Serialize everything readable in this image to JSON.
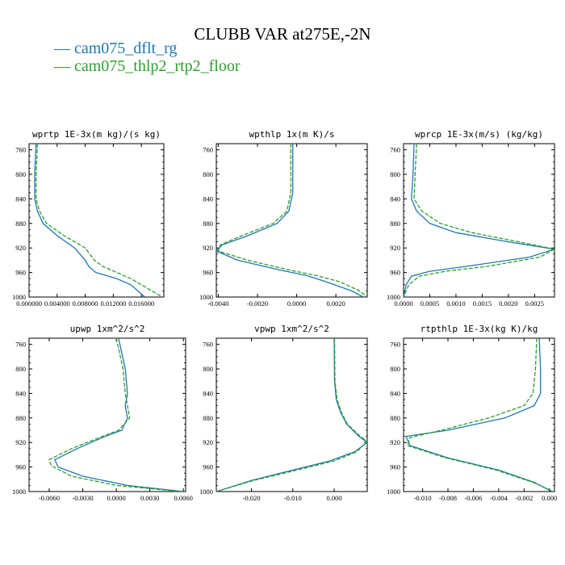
{
  "title": "CLUBB VAR at275E,-2N",
  "legend": [
    {
      "label": "cam075_dflt_rg",
      "color": "#1f77b4",
      "dash": "solid"
    },
    {
      "label": "cam075_thlp2_rtp2_floor",
      "color": "#2ca02c",
      "dash": "dashed"
    }
  ],
  "chart_data": [
    {
      "type": "line",
      "title": "wprtp  1E-3x(m kg)/(s kg)",
      "xlim": [
        0,
        0.0192
      ],
      "ylim": [
        1000,
        750
      ],
      "y_inverted": true,
      "xticks": [
        0,
        0.004,
        0.008,
        0.012,
        0.016
      ],
      "xtick_labels": [
        "0.000000",
        "0.004000",
        "0.008000",
        "0.012000",
        "0.016000"
      ],
      "yticks": [
        760,
        800,
        840,
        880,
        920,
        960,
        1000
      ],
      "series": [
        {
          "name": "cam075_dflt_rg",
          "points": [
            [
              0.001,
              750
            ],
            [
              0.0008,
              800
            ],
            [
              0.0008,
              840
            ],
            [
              0.0012,
              860
            ],
            [
              0.002,
              880
            ],
            [
              0.004,
              900
            ],
            [
              0.0065,
              920
            ],
            [
              0.008,
              940
            ],
            [
              0.0085,
              950
            ],
            [
              0.0095,
              960
            ],
            [
              0.0125,
              970
            ],
            [
              0.0145,
              980
            ],
            [
              0.0155,
              990
            ],
            [
              0.0165,
              1000
            ]
          ]
        },
        {
          "name": "cam075_thlp2_rtp2_floor",
          "points": [
            [
              0.0012,
              750
            ],
            [
              0.001,
              800
            ],
            [
              0.001,
              840
            ],
            [
              0.0015,
              860
            ],
            [
              0.0025,
              880
            ],
            [
              0.005,
              900
            ],
            [
              0.008,
              920
            ],
            [
              0.0093,
              940
            ],
            [
              0.0105,
              950
            ],
            [
              0.0125,
              960
            ],
            [
              0.0145,
              970
            ],
            [
              0.016,
              980
            ],
            [
              0.0175,
              990
            ],
            [
              0.019,
              1000
            ]
          ]
        }
      ]
    },
    {
      "type": "line",
      "title": "wpthlp  1x(m K)/s",
      "xlim": [
        -0.0041,
        0.0036
      ],
      "ylim": [
        1000,
        750
      ],
      "y_inverted": true,
      "xticks": [
        -0.004,
        -0.002,
        0.0,
        0.002
      ],
      "xtick_labels": [
        "-0.0040",
        "-0.0020",
        "0.0000",
        "0.0020"
      ],
      "yticks": [
        760,
        800,
        840,
        880,
        920,
        960,
        1000
      ],
      "series": [
        {
          "name": "cam075_dflt_rg",
          "points": [
            [
              -0.0002,
              750
            ],
            [
              -0.0002,
              800
            ],
            [
              -0.0002,
              830
            ],
            [
              -0.0004,
              860
            ],
            [
              -0.001,
              880
            ],
            [
              -0.0025,
              900
            ],
            [
              -0.0038,
              915
            ],
            [
              -0.0041,
              925
            ],
            [
              -0.003,
              940
            ],
            [
              -0.001,
              955
            ],
            [
              0.0005,
              965
            ],
            [
              0.0015,
              975
            ],
            [
              0.0028,
              990
            ],
            [
              0.0034,
              1000
            ]
          ]
        },
        {
          "name": "cam075_thlp2_rtp2_floor",
          "points": [
            [
              -0.0003,
              750
            ],
            [
              -0.0003,
              800
            ],
            [
              -0.0003,
              830
            ],
            [
              -0.0005,
              860
            ],
            [
              -0.0012,
              880
            ],
            [
              -0.0028,
              900
            ],
            [
              -0.0039,
              915
            ],
            [
              -0.004,
              925
            ],
            [
              -0.0025,
              940
            ],
            [
              -0.0005,
              955
            ],
            [
              0.001,
              965
            ],
            [
              0.0022,
              975
            ],
            [
              0.0032,
              990
            ],
            [
              0.0036,
              1000
            ]
          ]
        }
      ]
    },
    {
      "type": "line",
      "title": "wprcp  1E-3x(m/s) (kg/kg)",
      "xlim": [
        0,
        0.00288
      ],
      "ylim": [
        1000,
        750
      ],
      "y_inverted": true,
      "xticks": [
        0,
        0.0005,
        0.001,
        0.0015,
        0.002,
        0.0025
      ],
      "xtick_labels": [
        "0.0000",
        "0.0005",
        "0.0010",
        "0.0015",
        "0.0020",
        "0.0025"
      ],
      "yticks": [
        760,
        800,
        840,
        880,
        920,
        960,
        1000
      ],
      "series": [
        {
          "name": "cam075_dflt_rg",
          "points": [
            [
              0.0002,
              750
            ],
            [
              0.00018,
              800
            ],
            [
              0.00015,
              840
            ],
            [
              0.00025,
              860
            ],
            [
              0.0005,
              880
            ],
            [
              0.001,
              895
            ],
            [
              0.002,
              910
            ],
            [
              0.00288,
              922
            ],
            [
              0.0024,
              935
            ],
            [
              0.0012,
              950
            ],
            [
              0.0005,
              958
            ],
            [
              0.00015,
              966
            ],
            [
              5e-05,
              980
            ],
            [
              0.0,
              1000
            ]
          ]
        },
        {
          "name": "cam075_thlp2_rtp2_floor",
          "points": [
            [
              0.00025,
              750
            ],
            [
              0.00022,
              800
            ],
            [
              0.0002,
              840
            ],
            [
              0.00035,
              860
            ],
            [
              0.0007,
              880
            ],
            [
              0.0013,
              895
            ],
            [
              0.0022,
              910
            ],
            [
              0.00288,
              922
            ],
            [
              0.0026,
              935
            ],
            [
              0.0016,
              950
            ],
            [
              0.0008,
              958
            ],
            [
              0.0003,
              966
            ],
            [
              0.0001,
              980
            ],
            [
              0.0,
              1000
            ]
          ]
        }
      ]
    },
    {
      "type": "line",
      "title": "upwp  1xm^2/s^2",
      "xlim": [
        -0.0078,
        0.0062
      ],
      "ylim": [
        1000,
        750
      ],
      "y_inverted": true,
      "xticks": [
        -0.006,
        -0.003,
        0.0,
        0.003,
        0.006
      ],
      "xtick_labels": [
        "-0.0060",
        "-0.0030",
        "0.0000",
        "0.0030",
        "0.0060"
      ],
      "yticks": [
        760,
        800,
        840,
        880,
        920,
        960,
        1000
      ],
      "series": [
        {
          "name": "cam075_dflt_rg",
          "points": [
            [
              0.0002,
              750
            ],
            [
              0.0008,
              800
            ],
            [
              0.001,
              840
            ],
            [
              0.0008,
              860
            ],
            [
              0.001,
              880
            ],
            [
              0.0005,
              900
            ],
            [
              -0.001,
              910
            ],
            [
              -0.0035,
              930
            ],
            [
              -0.0055,
              948
            ],
            [
              -0.0052,
              960
            ],
            [
              -0.003,
              975
            ],
            [
              0.001,
              990
            ],
            [
              0.006,
              1000
            ]
          ]
        },
        {
          "name": "cam075_thlp2_rtp2_floor",
          "points": [
            [
              0.0,
              750
            ],
            [
              0.0006,
              800
            ],
            [
              0.0008,
              840
            ],
            [
              0.001,
              860
            ],
            [
              0.0012,
              880
            ],
            [
              0.0002,
              900
            ],
            [
              -0.0015,
              912
            ],
            [
              -0.004,
              930
            ],
            [
              -0.006,
              948
            ],
            [
              -0.0058,
              958
            ],
            [
              -0.004,
              975
            ],
            [
              0.0,
              990
            ],
            [
              0.0058,
              1000
            ]
          ]
        }
      ]
    },
    {
      "type": "line",
      "title": "vpwp  1xm^2/s^2",
      "xlim": [
        -0.0285,
        0.008
      ],
      "ylim": [
        1000,
        750
      ],
      "y_inverted": true,
      "xticks": [
        -0.02,
        -0.01,
        0.0
      ],
      "xtick_labels": [
        "-0.020",
        "-0.010",
        "0.000"
      ],
      "yticks": [
        760,
        800,
        840,
        880,
        920,
        960,
        1000
      ],
      "series": [
        {
          "name": "cam075_dflt_rg",
          "points": [
            [
              0.0,
              750
            ],
            [
              0.0001,
              820
            ],
            [
              0.0005,
              850
            ],
            [
              0.0015,
              870
            ],
            [
              0.003,
              890
            ],
            [
              0.006,
              910
            ],
            [
              0.008,
              920
            ],
            [
              0.005,
              935
            ],
            [
              -0.001,
              950
            ],
            [
              -0.01,
              965
            ],
            [
              -0.02,
              982
            ],
            [
              -0.0285,
              1000
            ]
          ]
        },
        {
          "name": "cam075_thlp2_rtp2_floor",
          "points": [
            [
              0.0001,
              750
            ],
            [
              0.0002,
              820
            ],
            [
              0.0007,
              850
            ],
            [
              0.0017,
              870
            ],
            [
              0.0032,
              890
            ],
            [
              0.0063,
              910
            ],
            [
              0.008,
              918
            ],
            [
              0.0055,
              935
            ],
            [
              0.0,
              950
            ],
            [
              -0.009,
              965
            ],
            [
              -0.0195,
              982
            ],
            [
              -0.0285,
              1000
            ]
          ]
        }
      ]
    },
    {
      "type": "line",
      "title": "rtpthlp  1E-3x(kg K)/kg",
      "xlim": [
        -0.0115,
        0.0004
      ],
      "ylim": [
        1000,
        750
      ],
      "y_inverted": true,
      "xticks": [
        -0.01,
        -0.008,
        -0.006,
        -0.004,
        -0.002,
        0.0
      ],
      "xtick_labels": [
        "-0.010",
        "-0.008",
        "-0.006",
        "-0.004",
        "-0.002",
        "0.000"
      ],
      "yticks": [
        760,
        800,
        840,
        880,
        920,
        960,
        1000
      ],
      "series": [
        {
          "name": "cam075_dflt_rg",
          "points": [
            [
              -0.0008,
              750
            ],
            [
              -0.0007,
              800
            ],
            [
              -0.0007,
              840
            ],
            [
              -0.0012,
              860
            ],
            [
              -0.0035,
              880
            ],
            [
              -0.008,
              900
            ],
            [
              -0.0113,
              910
            ],
            [
              -0.011,
              925
            ],
            [
              -0.008,
              945
            ],
            [
              -0.004,
              965
            ],
            [
              -0.0012,
              985
            ],
            [
              0.0002,
              1000
            ]
          ]
        },
        {
          "name": "cam075_thlp2_rtp2_floor",
          "points": [
            [
              -0.001,
              750
            ],
            [
              -0.0011,
              800
            ],
            [
              -0.0013,
              840
            ],
            [
              -0.002,
              860
            ],
            [
              -0.0048,
              880
            ],
            [
              -0.0085,
              900
            ],
            [
              -0.011,
              912
            ],
            [
              -0.0112,
              925
            ],
            [
              -0.0082,
              945
            ],
            [
              -0.0042,
              965
            ],
            [
              -0.0013,
              985
            ],
            [
              0.0003,
              1000
            ]
          ]
        }
      ]
    }
  ]
}
